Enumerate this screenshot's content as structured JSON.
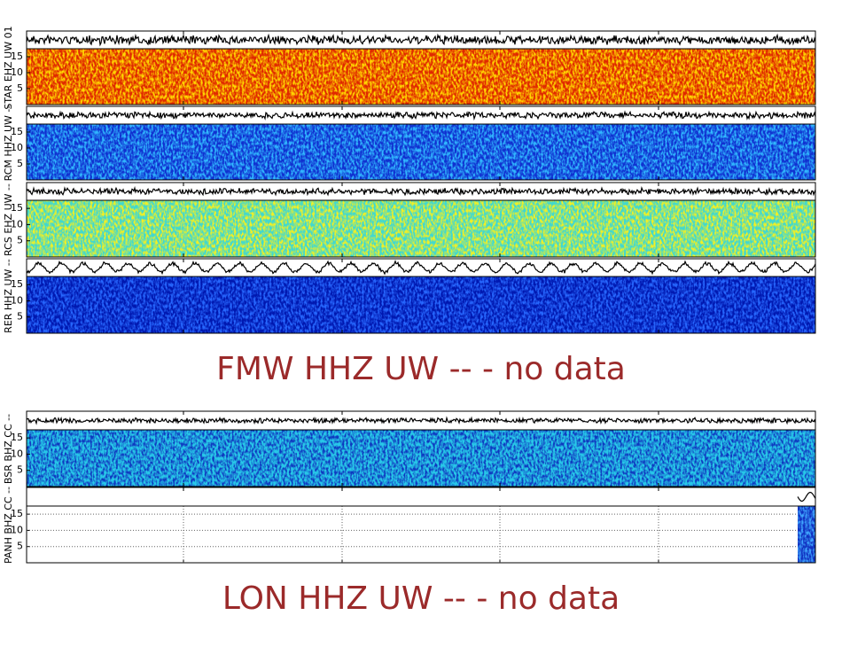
{
  "rows": [
    {
      "label": "STAR EHZ UW 01",
      "ylim": [
        0,
        17.5
      ],
      "yticks": [
        5,
        10,
        15
      ],
      "colors": [
        "#e02800",
        "#ffd800"
      ]
    },
    {
      "label": "RCM HHZ UW --",
      "ylim": [
        0,
        17.5
      ],
      "yticks": [
        5,
        10,
        15
      ],
      "colors": [
        "#1030d0",
        "#30b8ff"
      ]
    },
    {
      "label": "RCS EHZ UW --",
      "ylim": [
        0,
        17.5
      ],
      "yticks": [
        5,
        10,
        15
      ],
      "colors": [
        "#40d8d0",
        "#f4f020"
      ]
    },
    {
      "label": "RER HHZ UW --",
      "ylim": [
        0,
        17.5
      ],
      "yticks": [
        5,
        10,
        15
      ],
      "colors": [
        "#0018b0",
        "#2868ff"
      ]
    },
    {
      "message": "FMW HHZ UW -- - no data"
    },
    {
      "label": "BSR BHZ CC --",
      "ylim": [
        0,
        17.5
      ],
      "yticks": [
        5,
        10,
        15
      ],
      "colors": [
        "#28c8e8",
        "#1038c0"
      ]
    },
    {
      "label": "PANH BHZ CC --",
      "ylim": [
        0,
        17.5
      ],
      "yticks": [
        5,
        10,
        15
      ],
      "colors": [
        "#1030c0",
        "#40a8ff"
      ],
      "grid": true
    },
    {
      "message": "LON HHZ UW -- - no data"
    }
  ]
}
